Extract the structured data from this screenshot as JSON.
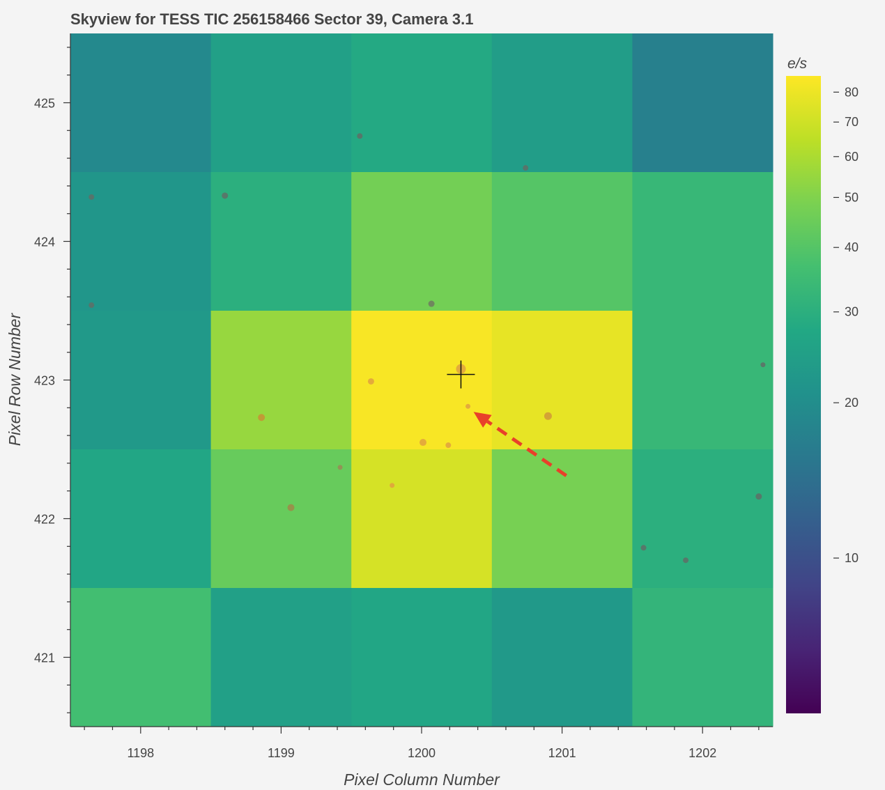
{
  "chart_data": {
    "type": "heatmap",
    "title": "Skyview for TESS TIC 256158466 Sector 39, Camera 3.1",
    "xlabel": "Pixel Column Number",
    "ylabel": "Pixel Row Number",
    "xlim": [
      1197.5,
      1202.5
    ],
    "ylim": [
      420.5,
      425.5
    ],
    "x_ticks": [
      "1198",
      "1199",
      "1200",
      "1201",
      "1202"
    ],
    "y_ticks": [
      "421",
      "422",
      "423",
      "424",
      "425"
    ],
    "columns": [
      1198,
      1199,
      1200,
      1201,
      1202
    ],
    "rows": [
      425,
      424,
      423,
      422,
      421
    ],
    "values": [
      [
        19,
        25,
        28,
        24,
        17
      ],
      [
        22,
        30,
        47,
        40,
        33
      ],
      [
        23,
        55,
        84,
        78,
        33
      ],
      [
        27,
        44,
        72,
        48,
        30
      ],
      [
        36,
        25,
        27,
        23,
        32
      ]
    ],
    "colorbar": {
      "label": "e/s",
      "scale": "log",
      "range": [
        5,
        86
      ],
      "ticks": [
        "10",
        "20",
        "30",
        "40",
        "50",
        "60",
        "70",
        "80"
      ],
      "colormap": "viridis"
    },
    "target": {
      "x": 1200.28,
      "y": 423.04
    },
    "sources": [
      {
        "x": 1200.28,
        "y": 423.08,
        "size": 7,
        "color": "#e0a040"
      },
      {
        "x": 1199.64,
        "y": 422.99,
        "size": 4.5,
        "color": "#e0a040"
      },
      {
        "x": 1200.33,
        "y": 422.81,
        "size": 3.5,
        "color": "#e0a040"
      },
      {
        "x": 1200.9,
        "y": 422.74,
        "size": 5.5,
        "color": "#d09838"
      },
      {
        "x": 1198.86,
        "y": 422.73,
        "size": 5,
        "color": "#c89035"
      },
      {
        "x": 1200.01,
        "y": 422.55,
        "size": 5,
        "color": "#e0a040"
      },
      {
        "x": 1200.19,
        "y": 422.53,
        "size": 4,
        "color": "#e0a040"
      },
      {
        "x": 1199.42,
        "y": 422.37,
        "size": 3.5,
        "color": "#9a8a55"
      },
      {
        "x": 1199.79,
        "y": 422.24,
        "size": 3.5,
        "color": "#e0a040"
      },
      {
        "x": 1199.07,
        "y": 422.08,
        "size": 5,
        "color": "#a08848"
      },
      {
        "x": 1200.07,
        "y": 423.55,
        "size": 4.5,
        "color": "#6f7a60"
      },
      {
        "x": 1199.56,
        "y": 424.76,
        "size": 4,
        "color": "#5f6f66"
      },
      {
        "x": 1200.74,
        "y": 424.53,
        "size": 4,
        "color": "#5f6f66"
      },
      {
        "x": 1198.6,
        "y": 424.33,
        "size": 4.5,
        "color": "#5f6f66"
      },
      {
        "x": 1197.65,
        "y": 424.32,
        "size": 4,
        "color": "#5f6f66"
      },
      {
        "x": 1197.65,
        "y": 423.54,
        "size": 4,
        "color": "#5f6f66"
      },
      {
        "x": 1202.43,
        "y": 423.11,
        "size": 3.5,
        "color": "#5f6f66"
      },
      {
        "x": 1202.4,
        "y": 422.16,
        "size": 4.5,
        "color": "#5f6f66"
      },
      {
        "x": 1201.58,
        "y": 421.79,
        "size": 4,
        "color": "#5f6f66"
      },
      {
        "x": 1201.88,
        "y": 421.7,
        "size": 4,
        "color": "#5f6f66"
      }
    ],
    "arrow": {
      "from": {
        "x": 1201.03,
        "y": 422.31
      },
      "to": {
        "x": 1200.37,
        "y": 422.77
      },
      "color": "#e8402a"
    }
  }
}
